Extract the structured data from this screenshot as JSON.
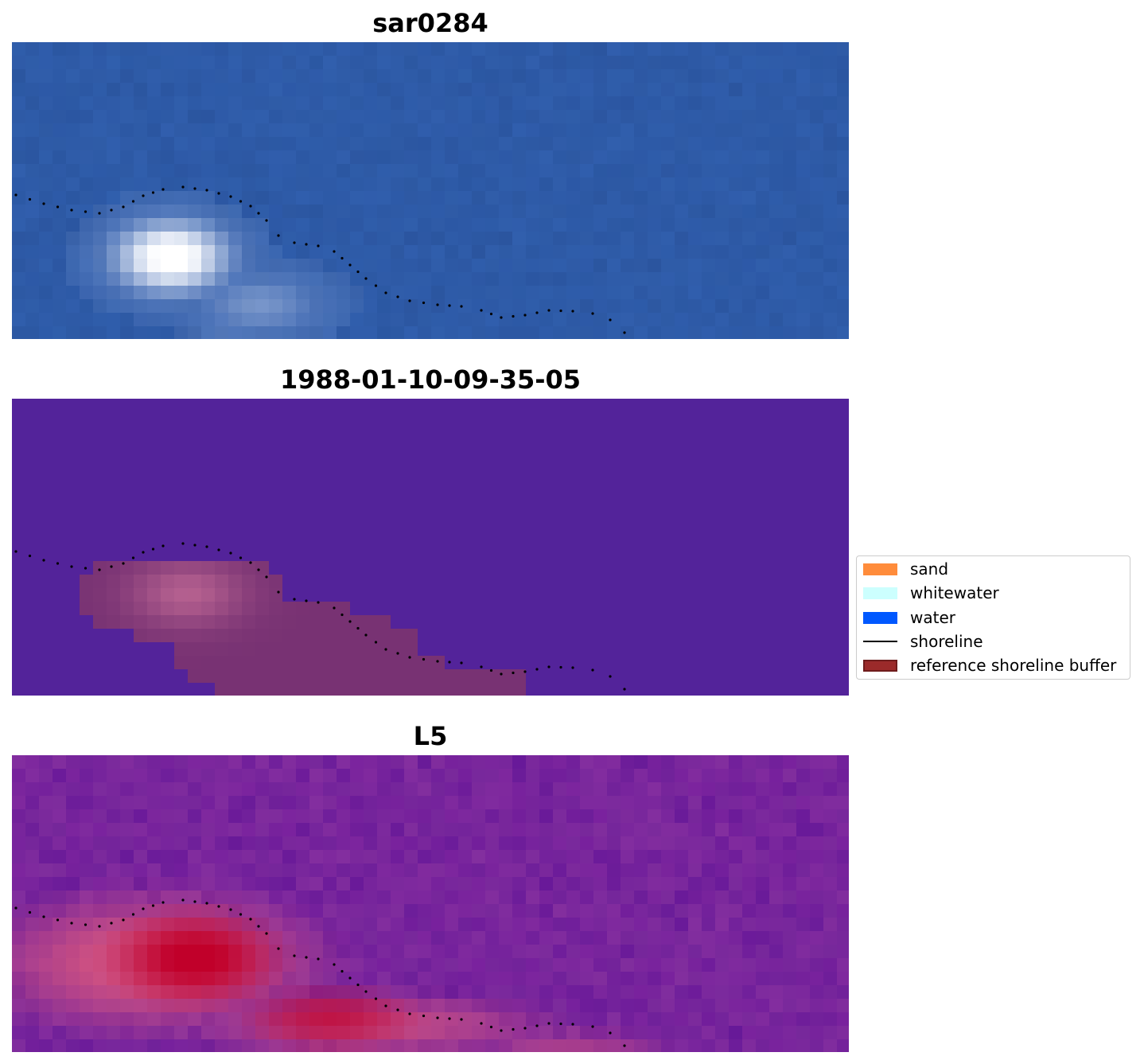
{
  "chart_data": [
    {
      "type": "heatmap",
      "title": "sar0284",
      "description_colors": {
        "base": "#2d5aa8",
        "highlight": "#ffffff"
      },
      "grid": false,
      "axes_visible": false
    },
    {
      "type": "heatmap",
      "title": "1988-01-10-09-35-05",
      "description_colors": {
        "base": "#53239a",
        "overlay": "#b4608f"
      },
      "grid": false,
      "axes_visible": false
    },
    {
      "type": "heatmap",
      "title": "L5",
      "description_colors": {
        "base": "#7b239e",
        "hot": "#c1002a"
      },
      "grid": false,
      "axes_visible": false
    }
  ],
  "legend": {
    "placement": "center-right",
    "items": [
      {
        "label": "sand",
        "kind": "patch",
        "color": "#ff8c3b"
      },
      {
        "label": "whitewater",
        "kind": "patch",
        "color": "#ccfffe"
      },
      {
        "label": "water",
        "kind": "patch",
        "color": "#0058ff"
      },
      {
        "label": "shoreline",
        "kind": "line",
        "color": "#000000"
      },
      {
        "label": "reference shoreline buffer",
        "kind": "patch",
        "color": "#9b2a2a",
        "edge": "#6e1c1c"
      }
    ]
  }
}
